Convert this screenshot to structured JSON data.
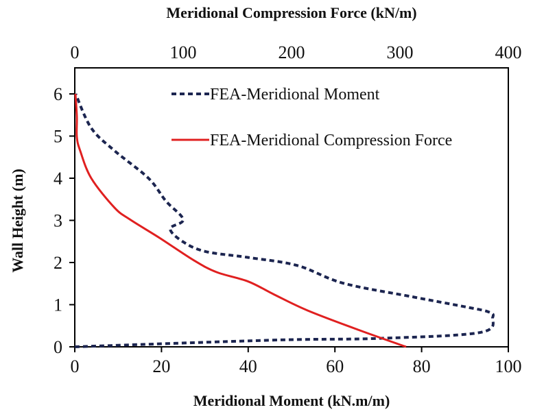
{
  "chart_data": {
    "type": "line",
    "title": "",
    "xlabel": "Meridional Moment (kN.m/m)",
    "x2label": "Meridional Compression Force (kN/m)",
    "ylabel": "Wall Height (m)",
    "xlim": [
      0,
      100
    ],
    "x2lim": [
      0,
      400
    ],
    "ylim": [
      0,
      6
    ],
    "xticks": [
      "0",
      "20",
      "40",
      "60",
      "80",
      "100"
    ],
    "x2ticks": [
      "0",
      "100",
      "200",
      "300",
      "400"
    ],
    "yticks": [
      "0",
      "1",
      "2",
      "3",
      "4",
      "5",
      "6"
    ],
    "grid": false,
    "legend_position": "top-right",
    "series": [
      {
        "name": "FEA-Meridional Moment",
        "axis": "bottom",
        "color": "#1c2550",
        "style": "dashed",
        "points": [
          [
            0,
            0
          ],
          [
            46,
            0.16
          ],
          [
            70,
            0.2
          ],
          [
            93.5,
            0.34
          ],
          [
            96.4,
            0.7
          ],
          [
            95.4,
            0.83
          ],
          [
            90,
            0.95
          ],
          [
            77.7,
            1.19
          ],
          [
            61.9,
            1.51
          ],
          [
            51.3,
            1.93
          ],
          [
            40,
            2.12
          ],
          [
            30.2,
            2.26
          ],
          [
            25,
            2.49
          ],
          [
            22,
            2.8
          ],
          [
            25,
            3.02
          ],
          [
            21,
            3.46
          ],
          [
            17,
            4.0
          ],
          [
            9.2,
            4.65
          ],
          [
            3.8,
            5.19
          ],
          [
            0.2,
            6
          ]
        ]
      },
      {
        "name": "FEA-Meridional Compression Force",
        "axis": "top",
        "color": "#e02020",
        "style": "solid",
        "points": [
          [
            305.7,
            0
          ],
          [
            263,
            0.39
          ],
          [
            215,
            0.86
          ],
          [
            184,
            1.24
          ],
          [
            160,
            1.55
          ],
          [
            131,
            1.77
          ],
          [
            110,
            2.05
          ],
          [
            78.5,
            2.58
          ],
          [
            51,
            3.02
          ],
          [
            36.7,
            3.3
          ],
          [
            15.2,
            4.0
          ],
          [
            5,
            4.65
          ],
          [
            1.9,
            4.98
          ],
          [
            1.9,
            5.46
          ],
          [
            0.6,
            6
          ]
        ]
      }
    ]
  }
}
